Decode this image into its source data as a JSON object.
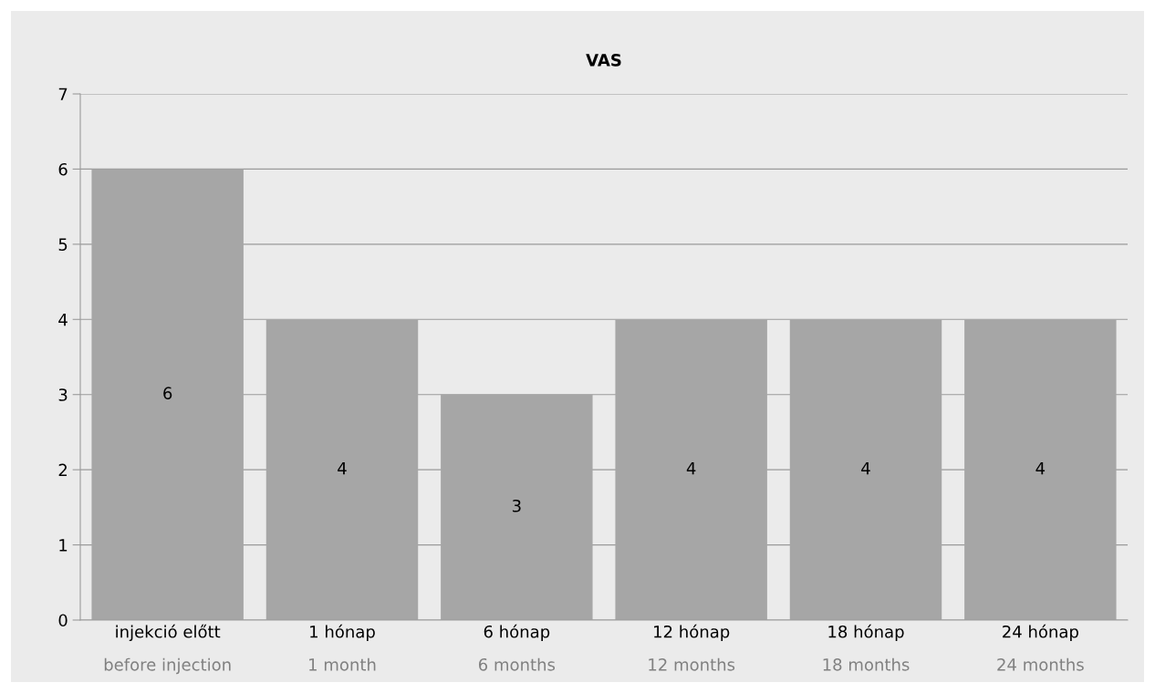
{
  "chart_data": {
    "type": "bar",
    "title": "VAS",
    "categories": [
      "injekció előtt\nbefore injection",
      "1 hónap\n1 month",
      "6 hónap\n6 months",
      "12 hónap\n12 months",
      "18 hónap\n18 months",
      "24 hónap\n24 months"
    ],
    "values": [
      6,
      4,
      3,
      4,
      4,
      4
    ],
    "color": "#a6a6a6",
    "ylim": [
      0,
      7
    ],
    "yticks": [
      0,
      1,
      2,
      3,
      4,
      5,
      6,
      7
    ],
    "grid": "y",
    "data_labels": true
  }
}
